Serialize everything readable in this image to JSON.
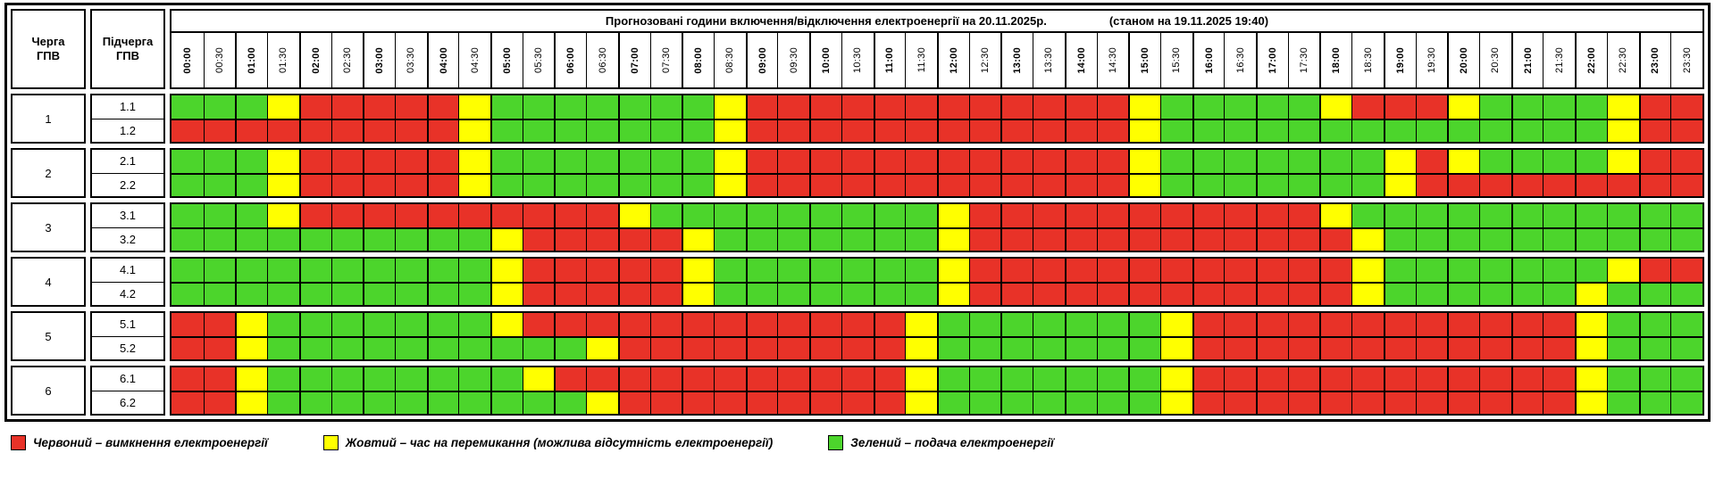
{
  "title": {
    "main": "Прогнозовані години включення/відключення електроенергії на 20.11.2025р.",
    "as_of": "(станом на 19.11.2025 19:40)"
  },
  "left_headers": {
    "queue": "Черга\nГПВ",
    "subqueue": "Підчерга\nГПВ"
  },
  "times": [
    "00:00",
    "00:30",
    "01:00",
    "01:30",
    "02:00",
    "02:30",
    "03:00",
    "03:30",
    "04:00",
    "04:30",
    "05:00",
    "05:30",
    "06:00",
    "06:30",
    "07:00",
    "07:30",
    "08:00",
    "08:30",
    "09:00",
    "09:30",
    "10:00",
    "10:30",
    "11:00",
    "11:30",
    "12:00",
    "12:30",
    "13:00",
    "13:30",
    "14:00",
    "14:30",
    "15:00",
    "15:30",
    "16:00",
    "16:30",
    "17:00",
    "17:30",
    "18:00",
    "18:30",
    "19:00",
    "19:30",
    "20:00",
    "20:30",
    "21:00",
    "21:30",
    "22:00",
    "22:30",
    "23:00",
    "23:30"
  ],
  "colors": {
    "R": "#e83228",
    "Y": "#ffff00",
    "G": "#4cd52c"
  },
  "groups": [
    {
      "queue": "1",
      "rows": [
        {
          "label": "1.1",
          "cells": "GGGYRRRRRYGGGGGGGYRRRRRRRRRRRRYGGGGGYRRRYGGGGYRR"
        },
        {
          "label": "1.2",
          "cells": "RRRRRRRRRYGGGGGGGYRRRRRRRRRRRRYGGGGGGGGGGGGGGYRR"
        }
      ]
    },
    {
      "queue": "2",
      "rows": [
        {
          "label": "2.1",
          "cells": "GGGYRRRRRYGGGGGGGYRRRRRRRRRRRRYGGGGGGGYRYGGGGYRR"
        },
        {
          "label": "2.2",
          "cells": "GGGYRRRRRYGGGGGGGYRRRRRRRRRRRRYGGGGGGGYRRRRRRRRR"
        }
      ]
    },
    {
      "queue": "3",
      "rows": [
        {
          "label": "3.1",
          "cells": "GGGYRRRRRRRRRRYGGGGGGGGGYRRRRRRRRRRRYGGGGGGGGGGG"
        },
        {
          "label": "3.2",
          "cells": "GGGGGGGGGGYRRRRRYGGGGGGGYRRRRRRRRRRRRYGGGGGGGGGG"
        }
      ]
    },
    {
      "queue": "4",
      "rows": [
        {
          "label": "4.1",
          "cells": "GGGGGGGGGGYRRRRRYGGGGGGGYRRRRRRRRRRRRYGGGGGGGYRR"
        },
        {
          "label": "4.2",
          "cells": "GGGGGGGGGGYRRRRRYGGGGGGGYRRRRRRRRRRRRYGGGGGGYGGG"
        }
      ]
    },
    {
      "queue": "5",
      "rows": [
        {
          "label": "5.1",
          "cells": "RRYGGGGGGGYRRRRRRRRRRRRYGGGGGGGYRRRRRRRRRRRRYGGG"
        },
        {
          "label": "5.2",
          "cells": "RRYGGGGGGGGGGYRRRRRRRRRYGGGGGGGYRRRRRRRRRRRRYGGG"
        }
      ]
    },
    {
      "queue": "6",
      "rows": [
        {
          "label": "6.1",
          "cells": "RRYGGGGGGGGYRRRRRRRRRRRYGGGGGGGYRRRRRRRRRRRRYGGG"
        },
        {
          "label": "6.2",
          "cells": "RRYGGGGGGGGGGYRRRRRRRRRYGGGGGGGYRRRRRRRRRRRRYGGG"
        }
      ]
    }
  ],
  "legend": [
    {
      "color": "R",
      "text": "Червоний – вимкнення електроенергії"
    },
    {
      "color": "Y",
      "text": "Жовтий – час на перемикання (можлива відсутність електроенергії)"
    },
    {
      "color": "G",
      "text": "Зелений – подача електроенергії"
    }
  ],
  "chart_data": {
    "type": "heatmap",
    "title": "Прогнозовані години включення/відключення електроенергії на 20.11.2025р. (станом на 19.11.2025 19:40)",
    "x": [
      "00:00",
      "00:30",
      "01:00",
      "01:30",
      "02:00",
      "02:30",
      "03:00",
      "03:30",
      "04:00",
      "04:30",
      "05:00",
      "05:30",
      "06:00",
      "06:30",
      "07:00",
      "07:30",
      "08:00",
      "08:30",
      "09:00",
      "09:30",
      "10:00",
      "10:30",
      "11:00",
      "11:30",
      "12:00",
      "12:30",
      "13:00",
      "13:30",
      "14:00",
      "14:30",
      "15:00",
      "15:30",
      "16:00",
      "16:30",
      "17:00",
      "17:30",
      "18:00",
      "18:30",
      "19:00",
      "19:30",
      "20:00",
      "20:30",
      "21:00",
      "21:30",
      "22:00",
      "22:30",
      "23:00",
      "23:30"
    ],
    "value_legend": {
      "R": "вимкнення електроенергії",
      "Y": "час на перемикання (можлива відсутність електроенергії)",
      "G": "подача електроенергії"
    },
    "rows": [
      {
        "name": "1.1",
        "values": "GGGYRRRRRYGGGGGGGYRRRRRRRRRRRRYGGGGGYRRRYGGGGYRR"
      },
      {
        "name": "1.2",
        "values": "RRRRRRRRRYGGGGGGGYRRRRRRRRRRRRYGGGGGGGGGGGGGGYRR"
      },
      {
        "name": "2.1",
        "values": "GGGYRRRRRYGGGGGGGYRRRRRRRRRRRRYGGGGGGGYRYGGGGYRR"
      },
      {
        "name": "2.2",
        "values": "GGGYRRRRRYGGGGGGGYRRRRRRRRRRRRYGGGGGGGYRRRRRRRRR"
      },
      {
        "name": "3.1",
        "values": "GGGYRRRRRRRRRRYGGGGGGGGGYRRRRRRRRRRRYGGGGGGGGGGG"
      },
      {
        "name": "3.2",
        "values": "GGGGGGGGGGYRRRRRYGGGGGGGYRRRRRRRRRRRRYGGGGGGGGGG"
      },
      {
        "name": "4.1",
        "values": "GGGGGGGGGGYRRRRRYGGGGGGGYRRRRRRRRRRRRYGGGGGGGYRR"
      },
      {
        "name": "4.2",
        "values": "GGGGGGGGGGYRRRRRYGGGGGGGYRRRRRRRRRRRRYGGGGGGYGGG"
      },
      {
        "name": "5.1",
        "values": "RRYGGGGGGGYRRRRRRRRRRRRYGGGGGGGYRRRRRRRRRRRRYGGG"
      },
      {
        "name": "5.2",
        "values": "RRYGGGGGGGGGGYRRRRRRRRRYGGGGGGGYRRRRRRRRRRRRYGGG"
      },
      {
        "name": "6.1",
        "values": "RRYGGGGGGGGYRRRRRRRRRRRYGGGGGGGYRRRRRRRRRRRRYGGG"
      },
      {
        "name": "6.2",
        "values": "RRYGGGGGGGGGGYRRRRRRRRRYGGGGGGGYRRRRRRRRRRRRYGGG"
      }
    ]
  }
}
